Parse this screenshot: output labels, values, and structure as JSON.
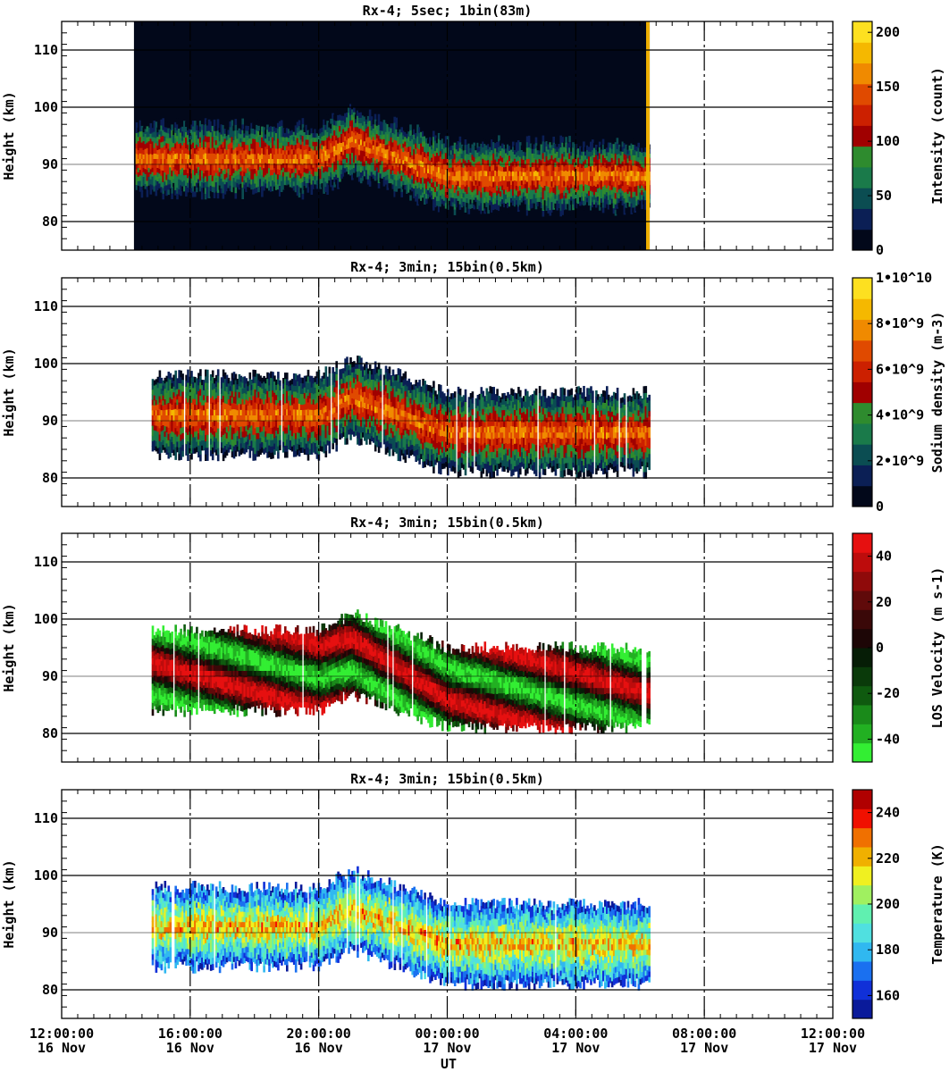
{
  "chart_data": [
    {
      "type": "heatmap",
      "title": "Rx-4;  5sec; 1bin(83m)",
      "ylabel": "Height (km)",
      "ylim": [
        75,
        115
      ],
      "yticks": [
        80,
        90,
        100,
        110
      ],
      "xlim_hours": [
        12,
        36
      ],
      "colorbar": {
        "label": "Intensity (count)",
        "range": [
          0,
          210
        ],
        "ticks": [
          "0",
          "50",
          "100",
          "150",
          "200"
        ],
        "tick_values": [
          0,
          50,
          100,
          150,
          200
        ],
        "colors": [
          "#02081a",
          "#0b1f55",
          "#0b4d52",
          "#1a7a4a",
          "#2e8b2e",
          "#a00000",
          "#cc2000",
          "#e04a00",
          "#f08a00",
          "#f5b800",
          "#fde020"
        ]
      },
      "data_extent_hours": [
        14.3,
        30.3
      ],
      "layer": {
        "center_km": [
          [
            14.8,
            91
          ],
          [
            20,
            91
          ],
          [
            21,
            94
          ],
          [
            24,
            88
          ],
          [
            26,
            88
          ],
          [
            30,
            88
          ]
        ],
        "half_width_km": 6
      }
    },
    {
      "type": "heatmap",
      "title": "Rx-4; 3min; 15bin(0.5km)",
      "ylabel": "Height (km)",
      "ylim": [
        75,
        115
      ],
      "yticks": [
        80,
        90,
        100,
        110
      ],
      "xlim_hours": [
        12,
        36
      ],
      "colorbar": {
        "label": "Sodium density (m-3)",
        "range": [
          0,
          10000000000
        ],
        "ticks": [
          "0",
          "2•10^9",
          "4•10^9",
          "6•10^9",
          "8•10^9",
          "1•10^10"
        ],
        "tick_values": [
          0,
          2000000000,
          4000000000,
          6000000000,
          8000000000,
          10000000000
        ],
        "colors": [
          "#02081a",
          "#0b1f55",
          "#0b4d52",
          "#1a7a4a",
          "#2e8b2e",
          "#a00000",
          "#cc2000",
          "#e04a00",
          "#f08a00",
          "#f5b800",
          "#fde020"
        ]
      },
      "data_extent_hours": [
        14.8,
        30.3
      ],
      "layer": {
        "center_km": [
          [
            14.8,
            91
          ],
          [
            20,
            91
          ],
          [
            21,
            94
          ],
          [
            24,
            88
          ],
          [
            26,
            88
          ],
          [
            30,
            88
          ]
        ],
        "half_width_km": 7
      }
    },
    {
      "type": "heatmap",
      "title": "Rx-4; 3min; 15bin(0.5km)",
      "ylabel": "Height (km)",
      "ylim": [
        75,
        115
      ],
      "yticks": [
        80,
        90,
        100,
        110
      ],
      "xlim_hours": [
        12,
        36
      ],
      "colorbar": {
        "label": "LOS Velocity (m s-1)",
        "range": [
          -50,
          50
        ],
        "ticks": [
          "-40",
          "-20",
          "0",
          "20",
          "40"
        ],
        "tick_values": [
          -40,
          -20,
          0,
          20,
          40
        ],
        "colors": [
          "#33ee33",
          "#22b022",
          "#1a8a1a",
          "#0f5a0f",
          "#0a3a0a",
          "#061d06",
          "#1d0606",
          "#3a0808",
          "#600a0a",
          "#8f0a0a",
          "#bd0c0c",
          "#e61010"
        ]
      },
      "data_extent_hours": [
        14.8,
        30.3
      ],
      "layer": {
        "center_km": [
          [
            14.8,
            91
          ],
          [
            20,
            91
          ],
          [
            21,
            94
          ],
          [
            24,
            88
          ],
          [
            26,
            88
          ],
          [
            30,
            88
          ]
        ],
        "half_width_km": 7
      }
    },
    {
      "type": "heatmap",
      "title": "Rx-4; 3min; 15bin(0.5km)",
      "ylabel": "Height (km)",
      "xlabel": "UT",
      "ylim": [
        75,
        115
      ],
      "yticks": [
        80,
        90,
        100,
        110
      ],
      "xlim_hours": [
        12,
        36
      ],
      "xticks": [
        {
          "hour": 12,
          "time": "12:00:00",
          "date": "16 Nov"
        },
        {
          "hour": 16,
          "time": "16:00:00",
          "date": "16 Nov"
        },
        {
          "hour": 20,
          "time": "20:00:00",
          "date": "16 Nov"
        },
        {
          "hour": 24,
          "time": "00:00:00",
          "date": "17 Nov"
        },
        {
          "hour": 28,
          "time": "04:00:00",
          "date": "17 Nov"
        },
        {
          "hour": 32,
          "time": "08:00:00",
          "date": "17 Nov"
        },
        {
          "hour": 36,
          "time": "12:00:00",
          "date": "17 Nov"
        }
      ],
      "colorbar": {
        "label": "Temperature (K)",
        "range": [
          150,
          250
        ],
        "ticks": [
          "160",
          "180",
          "200",
          "220",
          "240"
        ],
        "tick_values": [
          160,
          180,
          200,
          220,
          240
        ],
        "colors": [
          "#0a1a9a",
          "#1030d8",
          "#1a70f0",
          "#30b8f0",
          "#50e0e0",
          "#60f0b0",
          "#a0f060",
          "#f0f020",
          "#f0b000",
          "#f07000",
          "#f01000",
          "#b00000"
        ]
      },
      "data_extent_hours": [
        14.8,
        30.3
      ],
      "layer": {
        "center_km": [
          [
            14.8,
            91
          ],
          [
            20,
            91
          ],
          [
            21,
            94
          ],
          [
            24,
            88
          ],
          [
            26,
            88
          ],
          [
            30,
            88
          ]
        ],
        "half_width_km": 7
      }
    }
  ]
}
